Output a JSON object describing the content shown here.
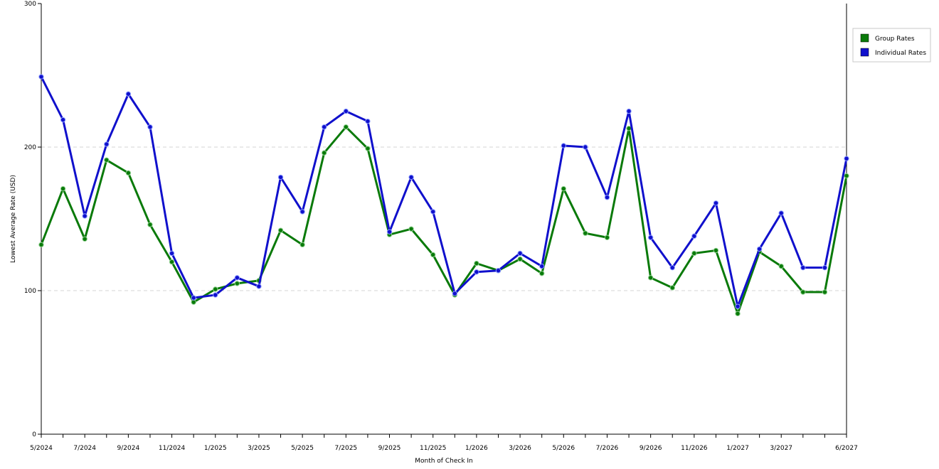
{
  "chart_data": {
    "type": "line",
    "title": "",
    "xlabel": "Month of Check In",
    "ylabel": "Lowest Average Rate (USD)",
    "ylim": [
      0,
      300
    ],
    "y_ticks": [
      "0",
      "100",
      "200",
      "300"
    ],
    "grid": "horizontal dashed at 100 and 200",
    "legend_position": "top-right",
    "x": [
      "5/2024",
      "6/2024",
      "7/2024",
      "8/2024",
      "9/2024",
      "10/2024",
      "11/2024",
      "12/2024",
      "1/2025",
      "2/2025",
      "3/2025",
      "4/2025",
      "5/2025",
      "6/2025",
      "7/2025",
      "8/2025",
      "9/2025",
      "10/2025",
      "11/2025",
      "12/2025",
      "1/2026",
      "2/2026",
      "3/2026",
      "4/2026",
      "5/2026",
      "6/2026",
      "7/2026",
      "8/2026",
      "9/2026",
      "10/2026",
      "11/2026",
      "12/2026",
      "1/2027",
      "2/2027",
      "3/2027",
      "4/2027",
      "5/2027",
      "6/2027"
    ],
    "x_tick_labels": [
      "5/2024",
      "",
      "7/2024",
      "",
      "9/2024",
      "",
      "11/2024",
      "",
      "1/2025",
      "",
      "3/2025",
      "",
      "5/2025",
      "",
      "7/2025",
      "",
      "9/2025",
      "",
      "11/2025",
      "",
      "1/2026",
      "",
      "3/2026",
      "",
      "5/2026",
      "",
      "7/2026",
      "",
      "9/2026",
      "",
      "11/2026",
      "",
      "1/2027",
      "",
      "3/2027",
      "",
      "",
      "6/2027"
    ],
    "series": [
      {
        "name": "Group Rates",
        "color": "#0a7a0a",
        "values": [
          132,
          171,
          136,
          191,
          182,
          146,
          120,
          92,
          101,
          105,
          107,
          142,
          132,
          196,
          214,
          199,
          139,
          143,
          125,
          97,
          119,
          114,
          122,
          112,
          171,
          140,
          137,
          213,
          109,
          102,
          126,
          128,
          84,
          127,
          117,
          99,
          99,
          180
        ]
      },
      {
        "name": "Individual Rates",
        "color": "#1010cc",
        "values": [
          249,
          219,
          152,
          202,
          237,
          214,
          126,
          95,
          97,
          109,
          103,
          179,
          155,
          214,
          225,
          218,
          141,
          179,
          155,
          98,
          113,
          114,
          126,
          117,
          201,
          200,
          165,
          225,
          137,
          116,
          138,
          161,
          89,
          129,
          154,
          116,
          116,
          192
        ]
      }
    ]
  }
}
